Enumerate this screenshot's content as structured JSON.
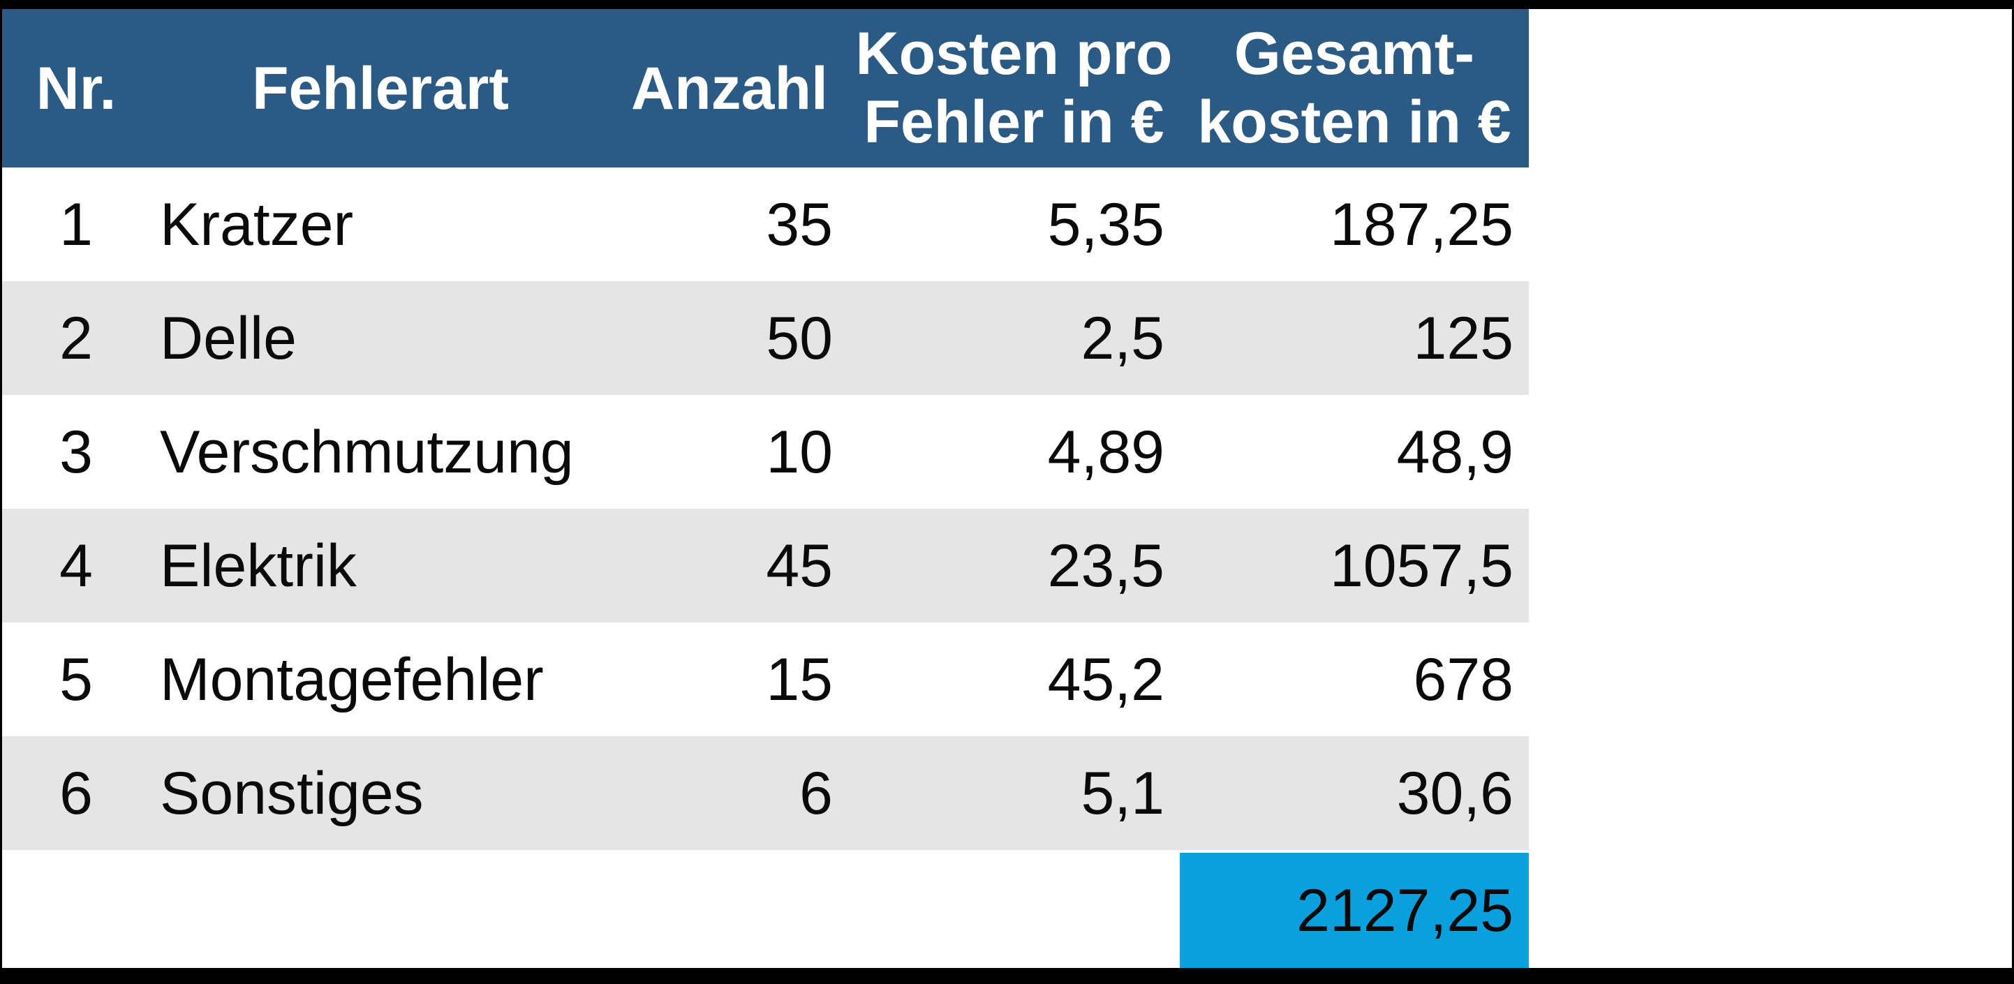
{
  "table": {
    "headers": {
      "nr": "Nr.",
      "fehlerart": "Fehlerart",
      "anzahl": "Anzahl",
      "kosten_line1": "Kosten pro",
      "kosten_line2": "Fehler in €",
      "gesamt_line1": "Gesamt-",
      "gesamt_line2": "kosten in €"
    },
    "rows": [
      {
        "nr": "1",
        "fehlerart": "Kratzer",
        "anzahl": "35",
        "kosten": "5,35",
        "gesamt": "187,25"
      },
      {
        "nr": "2",
        "fehlerart": "Delle",
        "anzahl": "50",
        "kosten": "2,5",
        "gesamt": "125"
      },
      {
        "nr": "3",
        "fehlerart": "Verschmutzung",
        "anzahl": "10",
        "kosten": "4,89",
        "gesamt": "48,9"
      },
      {
        "nr": "4",
        "fehlerart": "Elektrik",
        "anzahl": "45",
        "kosten": "23,5",
        "gesamt": "1057,5"
      },
      {
        "nr": "5",
        "fehlerart": "Montagefehler",
        "anzahl": "15",
        "kosten": "45,2",
        "gesamt": "678"
      },
      {
        "nr": "6",
        "fehlerart": "Sonstiges",
        "anzahl": "6",
        "kosten": "5,1",
        "gesamt": "30,6"
      }
    ],
    "total": "2127,25"
  },
  "colors": {
    "header_bg": "#2b5b85",
    "stripe_bg": "#e5e5e5",
    "total_bg": "#0aa0dd",
    "frame": "#000000",
    "header_text": "#ffffff",
    "body_text": "#0a0a0a"
  },
  "chart_data": {
    "type": "table",
    "title": "",
    "columns": [
      "Nr.",
      "Fehlerart",
      "Anzahl",
      "Kosten pro Fehler in €",
      "Gesamt-kosten in €"
    ],
    "rows": [
      [
        1,
        "Kratzer",
        35,
        5.35,
        187.25
      ],
      [
        2,
        "Delle",
        50,
        2.5,
        125
      ],
      [
        3,
        "Verschmutzung",
        10,
        4.89,
        48.9
      ],
      [
        4,
        "Elektrik",
        45,
        23.5,
        1057.5
      ],
      [
        5,
        "Montagefehler",
        15,
        45.2,
        678
      ],
      [
        6,
        "Sonstiges",
        6,
        5.1,
        30.6
      ]
    ],
    "total_gesamtkosten": 2127.25,
    "notes": "German decimal comma formatting; alternating row shading; total cell highlighted blue"
  }
}
